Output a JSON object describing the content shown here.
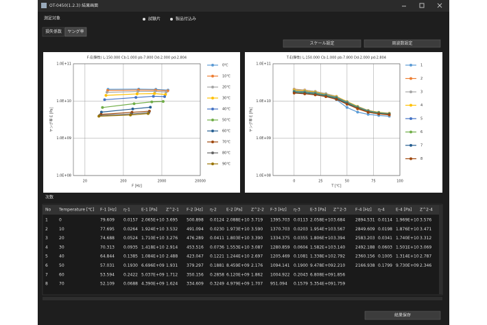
{
  "window": {
    "title": "OT-0450(1.2.3) 結果画面"
  },
  "target": {
    "label": "測定対象",
    "options": [
      "試験片",
      "製品付込み"
    ]
  },
  "tabs": [
    "損失係数",
    "ヤング率"
  ],
  "buttons": [
    "スケール設定",
    "周波数設定"
  ],
  "chart_data": [
    {
      "type": "line",
      "title": "F-E(弾性) L:150.000 Cb:1.000 pb:7.800 Dd:2.000 pd:2.804",
      "x_label": "F [Hz]",
      "y_label": "ヤング率 E [Pa]",
      "xscale": "log",
      "yscale": "log",
      "grid": true,
      "xlim": [
        10,
        20000
      ],
      "xticks": [
        20,
        200,
        2000,
        20000
      ],
      "ylim": [
        100000000,
        100000000000
      ],
      "yticks": [
        {
          "value": 100000000,
          "label": "1.0E+08"
        },
        {
          "value": 1000000000,
          "label": "1.0E+09"
        },
        {
          "value": 10000000000,
          "label": "1.0E+10"
        },
        {
          "value": 100000000000,
          "label": "1.0E+11"
        }
      ],
      "series": [
        {
          "name": "0℃",
          "color": "#5b9bd5",
          "x": [
            79.609,
            500.898,
            1395.703,
            2894.531
          ],
          "values": [
            20650000000,
            20880000000,
            20580000000,
            19690000000
          ]
        },
        {
          "name": "10℃",
          "color": "#ed7d31",
          "x": [
            77.695,
            491.094,
            1370.703,
            2849.609
          ],
          "values": [
            19240000000,
            19730000000,
            19540000000,
            18760000000
          ]
        },
        {
          "name": "20℃",
          "color": "#a5a5a5",
          "x": [
            74.688,
            476.289,
            1334.375,
            2583.203
          ],
          "values": [
            17100000000,
            18030000000,
            18060000000,
            17400000000
          ]
        },
        {
          "name": "30℃",
          "color": "#ffc000",
          "x": [
            70.313,
            453.516,
            1280.859,
            2492.188
          ],
          "values": [
            14180000000,
            15530000000,
            15820000000,
            15010000000
          ]
        },
        {
          "name": "40℃",
          "color": "#4472c4",
          "x": [
            64.844,
            423.047,
            1205.469,
            2360.156
          ],
          "values": [
            10840000000,
            12440000000,
            13380000000,
            13140000000
          ]
        },
        {
          "name": "50℃",
          "color": "#70ad47",
          "x": [
            57.031,
            379.297,
            1094.141,
            2166.938
          ],
          "values": [
            6696000000,
            8459000000,
            9478000000,
            9730000000
          ]
        },
        {
          "name": "60℃",
          "color": "#255e91",
          "x": [
            53.594,
            350.156,
            1004.922
          ],
          "values": [
            5037000000,
            6120000000,
            6808000000
          ]
        },
        {
          "name": "70℃",
          "color": "#9e480e",
          "x": [
            52.109,
            334.609,
            951.094
          ],
          "values": [
            4390000000,
            4979000000,
            5354000000
          ]
        },
        {
          "name": "80℃",
          "color": "#636363",
          "x": [
            48,
            320,
            920
          ],
          "values": [
            4100000000,
            4500000000,
            4900000000
          ]
        },
        {
          "name": "90℃",
          "color": "#997300",
          "x": [
            46,
            305,
            880
          ],
          "values": [
            3900000000,
            4200000000,
            4600000000
          ]
        }
      ]
    },
    {
      "type": "line",
      "title": "T-E(弾性) L:150.000 Cb:1.000 pb:7.800 Dd:2.000 pd:2.804",
      "x_label": "T [℃]",
      "y_label": "ヤング率 E [Pa]",
      "xscale": "linear",
      "yscale": "log",
      "grid": true,
      "xlim": [
        -20,
        100
      ],
      "xticks": [
        0,
        25,
        50,
        75,
        100
      ],
      "ylim": [
        100000000,
        100000000000
      ],
      "yticks": [
        {
          "value": 100000000,
          "label": "1.0E+08"
        },
        {
          "value": 1000000000,
          "label": "1.0E+09"
        },
        {
          "value": 10000000000,
          "label": "1.0E+10"
        },
        {
          "value": 100000000000,
          "label": "1.0E+11"
        }
      ],
      "x": [
        0,
        10,
        20,
        30,
        40,
        50,
        60,
        70,
        80,
        90
      ],
      "series": [
        {
          "name": "1",
          "color": "#5b9bd5",
          "values": [
            20650000000,
            19240000000,
            17100000000,
            14180000000,
            10840000000,
            6696000000,
            5037000000,
            4390000000,
            4100000000,
            3900000000
          ]
        },
        {
          "name": "2",
          "color": "#ed7d31",
          "values": [
            20880000000,
            19730000000,
            18030000000,
            15530000000,
            12440000000,
            8459000000,
            6120000000,
            4979000000,
            4500000000,
            4200000000
          ]
        },
        {
          "name": "3",
          "color": "#a5a5a5",
          "values": [
            20580000000,
            19540000000,
            18060000000,
            15820000000,
            13380000000,
            9478000000,
            6808000000,
            5354000000,
            4900000000,
            4600000000
          ]
        },
        {
          "name": "4",
          "color": "#ffc000",
          "values": [
            19690000000,
            18760000000,
            17400000000,
            15010000000,
            13140000000,
            9730000000,
            7200000000,
            5600000000,
            5000000000,
            4700000000
          ]
        },
        {
          "name": "5",
          "color": "#4472c4",
          "values": [
            18500000000,
            17800000000,
            16600000000,
            14600000000,
            12600000000,
            9400000000,
            7000000000,
            5500000000,
            4900000000,
            4600000000
          ]
        },
        {
          "name": "6",
          "color": "#70ad47",
          "values": [
            17800000000,
            17000000000,
            15900000000,
            14100000000,
            12100000000,
            9000000000,
            6800000000,
            5300000000,
            4800000000,
            4500000000
          ]
        },
        {
          "name": "7",
          "color": "#255e91",
          "values": [
            17000000000,
            16300000000,
            15200000000,
            13600000000,
            11600000000,
            8600000000,
            6500000000,
            5100000000,
            4600000000,
            4400000000
          ]
        },
        {
          "name": "8",
          "color": "#9e480e",
          "values": [
            16300000000,
            15600000000,
            14600000000,
            13100000000,
            11100000000,
            8200000000,
            6300000000,
            5000000000,
            4500000000,
            4300000000
          ]
        }
      ]
    }
  ],
  "table": {
    "label": "次数",
    "header": [
      "No",
      "Temperature [℃]",
      "F-1 [Hz]",
      "η-1",
      "E-1 [Pa]",
      "Z^2-1",
      "F-2 [Hz]",
      "η-2",
      "E-2 [Pa]",
      "Z^2-2",
      "F-3 [Hz]",
      "η-3",
      "E-3 [Pa]",
      "Z^2-3",
      "F-4 [Hz]",
      "η-4",
      "E-4 [Pa]",
      "Z^2-4"
    ],
    "rows": [
      [
        "1",
        "0",
        "79.609",
        "0.0157",
        "2.065E+10",
        "3.695",
        "500.898",
        "0.0124",
        "2.088E+10",
        "3.719",
        "1395.703",
        "0.0113",
        "2.058E+10",
        "3.684",
        "2894.531",
        "0.0114",
        "1.969E+10",
        "3.576"
      ],
      [
        "2",
        "10",
        "77.695",
        "0.0264",
        "1.924E+10",
        "3.532",
        "491.094",
        "0.0230",
        "1.973E+10",
        "3.590",
        "1370.703",
        "0.0203",
        "1.954E+10",
        "3.567",
        "2849.609",
        "0.0198",
        "1.876E+10",
        "3.471"
      ],
      [
        "3",
        "20",
        "74.688",
        "0.0524",
        "1.710E+10",
        "3.276",
        "476.289",
        "0.0411",
        "1.803E+10",
        "3.390",
        "1334.375",
        "0.0355",
        "1.806E+10",
        "3.394",
        "2583.203",
        "0.0341",
        "1.740E+10",
        "3.312"
      ],
      [
        "4",
        "30",
        "70.313",
        "0.0935",
        "1.418E+10",
        "2.914",
        "453.516",
        "0.0736",
        "1.553E+10",
        "3.087",
        "1280.859",
        "0.0604",
        "1.582E+10",
        "3.140",
        "2492.188",
        "0.0603",
        "1.501E+10",
        "3.069"
      ],
      [
        "5",
        "40",
        "64.844",
        "0.1385",
        "1.084E+10",
        "2.488",
        "423.047",
        "0.1221",
        "1.244E+10",
        "2.697",
        "1205.469",
        "0.1081",
        "1.338E+10",
        "2.792",
        "2360.156",
        "0.1005",
        "1.314E+10",
        "2.787"
      ],
      [
        "6",
        "50",
        "57.031",
        "0.1930",
        "6.696E+09",
        "1.931",
        "379.297",
        "0.1881",
        "8.459E+09",
        "2.176",
        "1094.141",
        "0.1900",
        "9.478E+09",
        "2.210",
        "2166.938",
        "0.1799",
        "9.730E+09",
        "2.346"
      ],
      [
        "7",
        "60",
        "53.594",
        "0.2422",
        "5.037E+09",
        "1.712",
        "350.156",
        "0.2858",
        "6.120E+09",
        "1.862",
        "1004.922",
        "0.2043",
        "6.808E+09",
        "1.856"
      ],
      [
        "8",
        "70",
        "52.109",
        "0.0688",
        "4.390E+09",
        "1.624",
        "334.609",
        "0.3249",
        "4.979E+09",
        "1.707",
        "951.094",
        "0.1579",
        "5.354E+09",
        "1.759"
      ]
    ]
  },
  "save_button": "結果保存"
}
